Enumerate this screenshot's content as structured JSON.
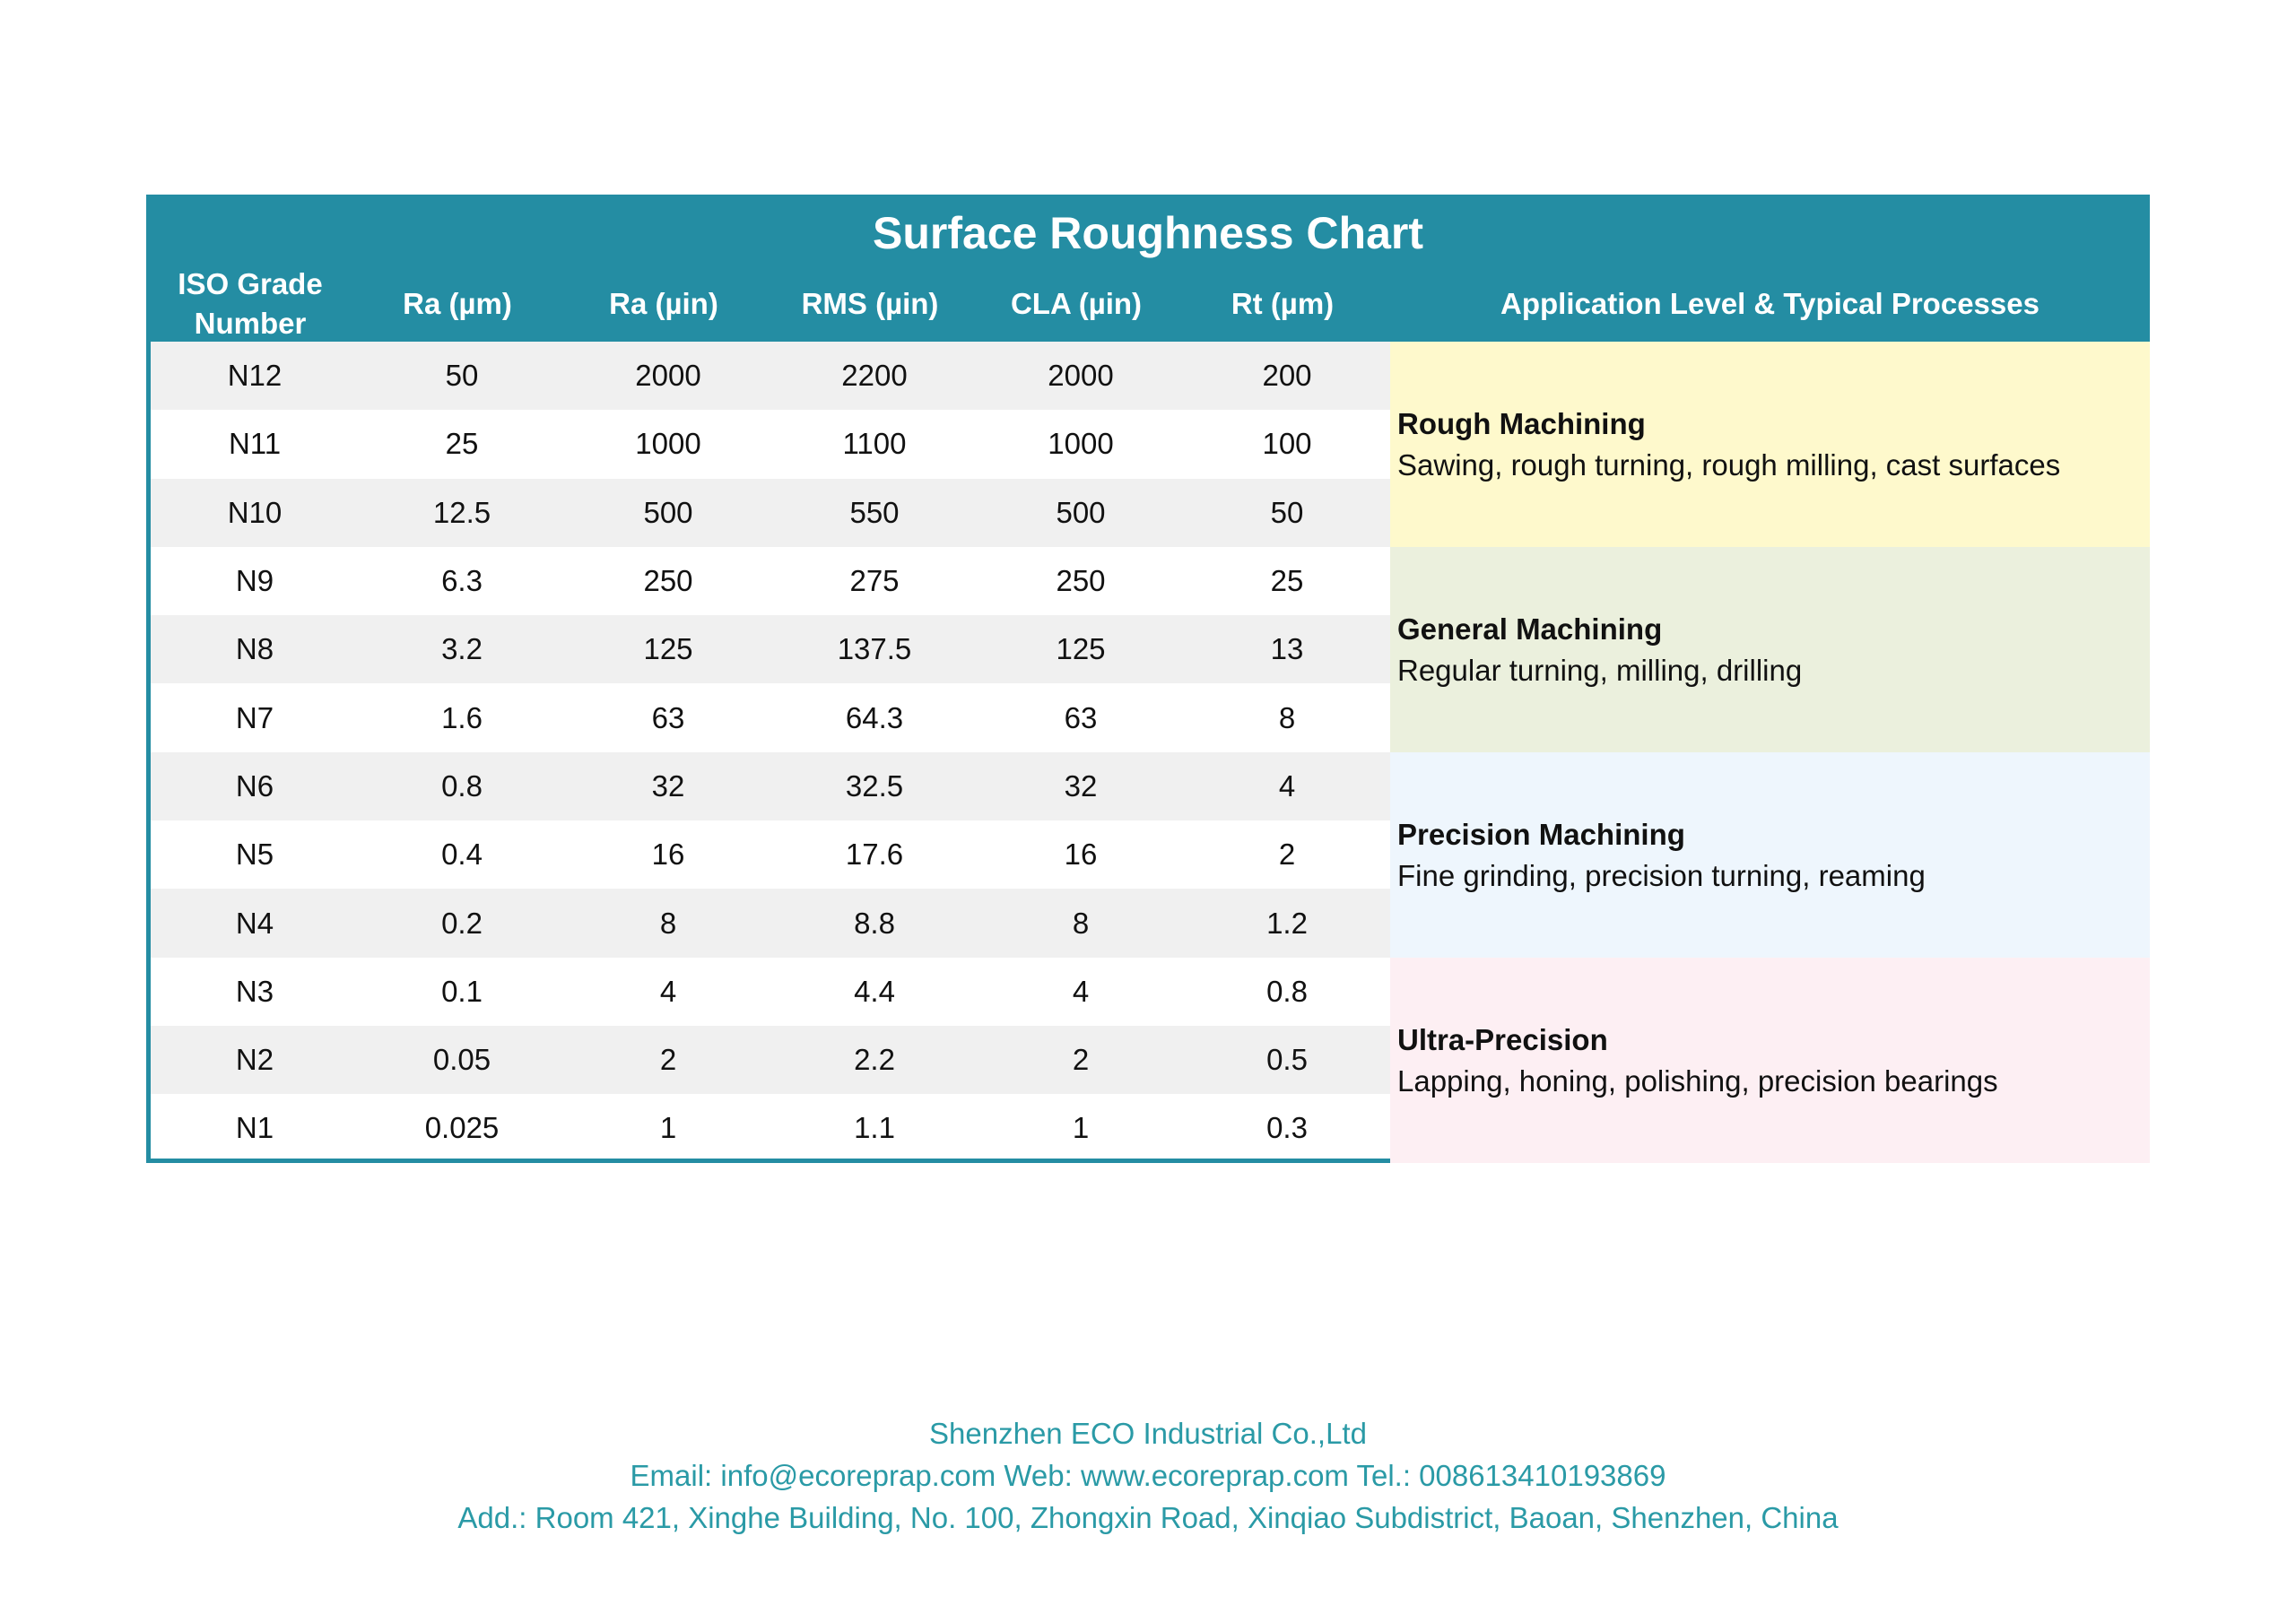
{
  "title": "Surface Roughness Chart",
  "columns": [
    "ISO Grade Number",
    "Ra (µm)",
    "Ra (µin)",
    "RMS (µin)",
    "CLA (µin)",
    "Rt (µm)",
    "Application Level & Typical Processes"
  ],
  "rows": [
    [
      "N12",
      "50",
      "2000",
      "2200",
      "2000",
      "200"
    ],
    [
      "N11",
      "25",
      "1000",
      "1100",
      "1000",
      "100"
    ],
    [
      "N10",
      "12.5",
      "500",
      "550",
      "500",
      "50"
    ],
    [
      "N9",
      "6.3",
      "250",
      "275",
      "250",
      "25"
    ],
    [
      "N8",
      "3.2",
      "125",
      "137.5",
      "125",
      "13"
    ],
    [
      "N7",
      "1.6",
      "63",
      "64.3",
      "63",
      "8"
    ],
    [
      "N6",
      "0.8",
      "32",
      "32.5",
      "32",
      "4"
    ],
    [
      "N5",
      "0.4",
      "16",
      "17.6",
      "16",
      "2"
    ],
    [
      "N4",
      "0.2",
      "8",
      "8.8",
      "8",
      "1.2"
    ],
    [
      "N3",
      "0.1",
      "4",
      "4.4",
      "4",
      "0.8"
    ],
    [
      "N2",
      "0.05",
      "2",
      "2.2",
      "2",
      "0.5"
    ],
    [
      "N1",
      "0.025",
      "1",
      "1.1",
      "1",
      "0.3"
    ]
  ],
  "applications": [
    {
      "title": "Rough Machining",
      "desc": "Sawing, rough turning, rough milling, cast surfaces",
      "color": "#fef9cc"
    },
    {
      "title": "General Machining",
      "desc": "Regular turning, milling, drilling",
      "color": "#ebf0dd"
    },
    {
      "title": "Precision Machining",
      "desc": "Fine grinding, precision turning, reaming",
      "color": "#eef6fd"
    },
    {
      "title": "Ultra-Precision",
      "desc": "Lapping, honing, polishing, precision bearings",
      "color": "#fdeff3"
    }
  ],
  "footer": {
    "company": "Shenzhen ECO Industrial Co.,Ltd",
    "contact": "Email: info@ecoreprap.com Web: www.ecoreprap.com Tel.: 008613410193869",
    "address": "Add.: Room 421, Xinghe Building, No. 100, Zhongxin Road, Xinqiao Subdistrict, Baoan, Shenzhen, China"
  },
  "colors": {
    "header": "#248da3",
    "footer_text": "#2a9aa6",
    "row_alt": "#f0f0f0"
  }
}
